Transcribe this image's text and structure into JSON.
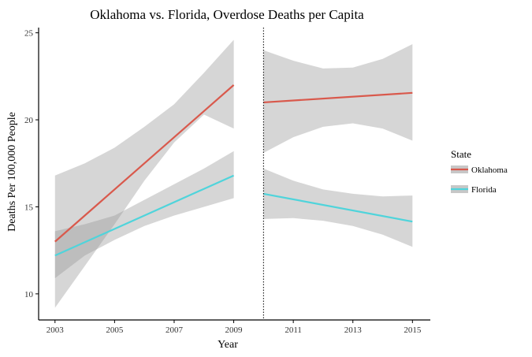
{
  "chart_data": {
    "type": "line",
    "title": "Oklahoma vs. Florida, Overdose Deaths per Capita",
    "xlabel": "Year",
    "ylabel": "Deaths Per 100,000 People",
    "xlim": [
      2002.45,
      2015.6
    ],
    "ylim": [
      8.5,
      25.3
    ],
    "x_ticks": [
      2003,
      2005,
      2007,
      2009,
      2011,
      2013,
      2015
    ],
    "y_ticks": [
      10,
      15,
      20,
      25
    ],
    "grid": false,
    "vline": {
      "x": 2010,
      "style": "dotted"
    },
    "legend": {
      "title": "State",
      "placement": "right"
    },
    "series": [
      {
        "name": "Oklahoma",
        "color": "#d9594c",
        "segments": [
          {
            "x": [
              2003,
              2009
            ],
            "y": [
              13.0,
              22.0
            ],
            "band_x": [
              2003,
              2004,
              2005,
              2006,
              2007,
              2008,
              2009
            ],
            "band_lower": [
              9.2,
              11.6,
              14.0,
              16.5,
              18.7,
              20.3,
              19.5
            ],
            "band_upper": [
              16.8,
              17.5,
              18.4,
              19.6,
              20.9,
              22.7,
              24.6
            ]
          },
          {
            "x": [
              2010,
              2015
            ],
            "y": [
              21.0,
              21.55
            ],
            "band_x": [
              2010,
              2011,
              2012,
              2013,
              2014,
              2015
            ],
            "band_lower": [
              18.1,
              19.0,
              19.6,
              19.8,
              19.5,
              18.8
            ],
            "band_upper": [
              24.0,
              23.4,
              22.95,
              23.0,
              23.5,
              24.35
            ]
          }
        ]
      },
      {
        "name": "Florida",
        "color": "#4fd4db",
        "segments": [
          {
            "x": [
              2003,
              2009
            ],
            "y": [
              12.2,
              16.8
            ],
            "band_x": [
              2003,
              2004,
              2005,
              2006,
              2007,
              2008,
              2009
            ],
            "band_lower": [
              10.9,
              12.2,
              13.1,
              13.9,
              14.5,
              15.0,
              15.5
            ],
            "band_upper": [
              13.6,
              14.0,
              14.5,
              15.4,
              16.3,
              17.2,
              18.2
            ]
          },
          {
            "x": [
              2010,
              2015
            ],
            "y": [
              15.75,
              14.15
            ],
            "band_x": [
              2010,
              2011,
              2012,
              2013,
              2014,
              2015
            ],
            "band_lower": [
              14.3,
              14.35,
              14.2,
              13.9,
              13.4,
              12.7
            ],
            "band_upper": [
              17.2,
              16.5,
              16.0,
              15.75,
              15.6,
              15.65
            ]
          }
        ]
      }
    ],
    "band_color": "#999999"
  }
}
